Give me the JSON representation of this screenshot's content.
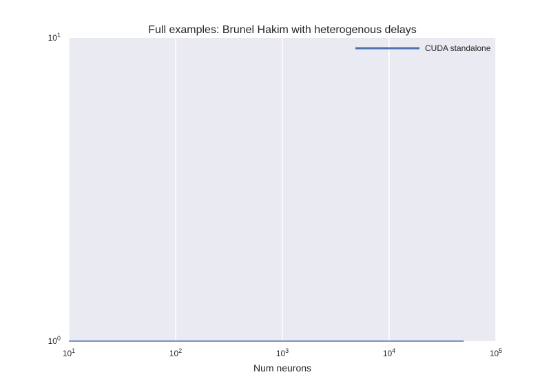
{
  "chart_data": {
    "type": "line",
    "title": "Full examples: Brunel Hakim with heterogenous delays",
    "xlabel": "Num neurons",
    "ylabel": "",
    "xscale": "log",
    "yscale": "log",
    "xlim": [
      10,
      100000
    ],
    "ylim": [
      1,
      10
    ],
    "x_ticks": [
      {
        "value": 10,
        "base": "10",
        "exp": "1"
      },
      {
        "value": 100,
        "base": "10",
        "exp": "2"
      },
      {
        "value": 1000,
        "base": "10",
        "exp": "3"
      },
      {
        "value": 10000,
        "base": "10",
        "exp": "4"
      },
      {
        "value": 100000,
        "base": "10",
        "exp": "5"
      }
    ],
    "y_ticks": [
      {
        "value": 1,
        "base": "10",
        "exp": "0"
      },
      {
        "value": 10,
        "base": "10",
        "exp": "1"
      }
    ],
    "grid": true,
    "legend_position": "top-right",
    "series": [
      {
        "name": "CUDA standalone",
        "color": "#4c72b0",
        "x": [
          10,
          100,
          1000,
          10000,
          50000
        ],
        "y": [
          1,
          1,
          1,
          1,
          1
        ]
      }
    ]
  },
  "colors": {
    "plot_background": "#eaeaf2",
    "grid": "#ffffff",
    "text": "#262626"
  }
}
